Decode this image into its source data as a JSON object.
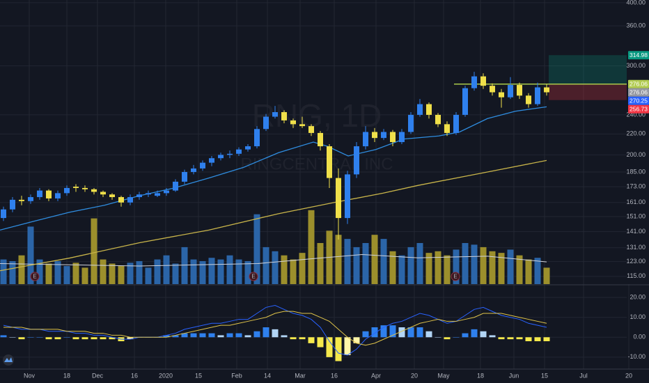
{
  "chart_data": [
    {
      "type": "candlestick",
      "watermark_symbol": "RNG, 1D",
      "watermark_name": "RINGCENTRAL INC",
      "x": [
        1,
        3.6,
        6.2,
        8.8,
        11.4,
        14,
        16.6,
        19.2,
        21.8,
        24.4,
        27,
        29.6,
        32.2,
        34.8,
        37.4,
        40,
        42.6,
        45.2,
        47.8,
        50.4,
        53,
        55.6,
        58.2,
        60.8,
        63.4,
        66,
        68.6,
        71.2,
        73.8,
        76.4,
        79,
        81.6,
        84.2,
        86.8,
        89.4,
        92,
        94.6,
        97.2,
        99.8,
        102.4,
        105,
        107.6,
        110.2,
        112.8,
        115.4,
        118,
        120.6,
        123.2,
        125.8,
        128.4,
        131,
        133.6,
        136.2,
        138.8,
        141.4,
        144,
        146.6,
        149.2,
        151.8,
        154.4,
        157
      ],
      "open": [
        150,
        156,
        163,
        162,
        165,
        170,
        164,
        168,
        173,
        172,
        171,
        169,
        167,
        165,
        161,
        165,
        167,
        166,
        168,
        170,
        177,
        185,
        188,
        193,
        197,
        200,
        201,
        205,
        208,
        225,
        238,
        243,
        234,
        230,
        228,
        221,
        208,
        180,
        150,
        183,
        208,
        222,
        216,
        222,
        212,
        222,
        240,
        252,
        240,
        230,
        221,
        240,
        271,
        286,
        274,
        266,
        260,
        275,
        262,
        252,
        272
      ],
      "high": [
        158,
        165,
        166,
        167,
        172,
        171,
        170,
        174,
        175,
        174,
        172,
        170,
        168,
        166,
        167,
        169,
        170,
        170,
        172,
        179,
        187,
        191,
        195,
        199,
        202,
        204,
        207,
        210,
        228,
        241,
        250,
        245,
        236,
        238,
        230,
        223,
        210,
        188,
        186,
        212,
        228,
        226,
        225,
        224,
        225,
        243,
        258,
        254,
        242,
        233,
        243,
        274,
        292,
        290,
        277,
        270,
        285,
        278,
        265,
        278,
        276
      ],
      "low": [
        148,
        154,
        159,
        160,
        163,
        162,
        162,
        166,
        169,
        169,
        167,
        165,
        163,
        158,
        159,
        163,
        165,
        165,
        166,
        169,
        175,
        183,
        186,
        190,
        195,
        197,
        199,
        203,
        206,
        223,
        236,
        231,
        226,
        226,
        218,
        204,
        172,
        136,
        146,
        180,
        205,
        212,
        214,
        208,
        210,
        220,
        238,
        236,
        227,
        218,
        219,
        238,
        268,
        270,
        262,
        248,
        258,
        258,
        248,
        250,
        262
      ],
      "close": [
        156,
        163,
        162,
        165,
        170,
        164,
        168,
        172,
        172,
        171,
        169,
        167,
        165,
        161,
        165,
        167,
        168,
        168,
        170,
        177,
        185,
        188,
        193,
        197,
        200,
        201,
        205,
        208,
        225,
        238,
        243,
        234,
        230,
        228,
        221,
        208,
        180,
        150,
        183,
        208,
        222,
        216,
        222,
        212,
        222,
        240,
        252,
        240,
        230,
        221,
        240,
        271,
        286,
        274,
        266,
        260,
        275,
        262,
        252,
        272,
        266
      ],
      "up_color": "#2f80ed",
      "down_color": "#f0e04a",
      "xlim": [
        0,
        186.4
      ],
      "xticks": [
        {
          "value": 8.4,
          "label": "Nov"
        },
        {
          "value": 19.2,
          "label": "18"
        },
        {
          "value": 28,
          "label": "Dec"
        },
        {
          "value": 38.6,
          "label": "16"
        },
        {
          "value": 47.6,
          "label": "2020"
        },
        {
          "value": 57,
          "label": "15"
        },
        {
          "value": 68,
          "label": "Feb"
        },
        {
          "value": 76.8,
          "label": "14"
        },
        {
          "value": 86.2,
          "label": "Mar"
        },
        {
          "value": 96,
          "label": "16"
        },
        {
          "value": 108,
          "label": "Apr"
        },
        {
          "value": 119,
          "label": "20"
        },
        {
          "value": 127.4,
          "label": "May"
        },
        {
          "value": 138,
          "label": "18"
        },
        {
          "value": 147.6,
          "label": "Jun"
        },
        {
          "value": 156.4,
          "label": "15"
        },
        {
          "value": 167.6,
          "label": "Jul"
        },
        {
          "value": 180.6,
          "label": "20"
        }
      ],
      "ylim": [
        111,
        405
      ],
      "log_scale": true,
      "yticks": [
        {
          "value": 400,
          "label": "400.00"
        },
        {
          "value": 360,
          "label": "360.00"
        },
        {
          "value": 300,
          "label": "300.00"
        },
        {
          "value": 240,
          "label": "240.00"
        },
        {
          "value": 220,
          "label": "220.00"
        },
        {
          "value": 200,
          "label": "200.00"
        },
        {
          "value": 185,
          "label": "185.00"
        },
        {
          "value": 173,
          "label": "173.00"
        },
        {
          "value": 161,
          "label": "161.00"
        },
        {
          "value": 151,
          "label": "151.00"
        },
        {
          "value": 141,
          "label": "141.00"
        },
        {
          "value": 131,
          "label": "131.00"
        },
        {
          "value": 123,
          "label": "123.00"
        },
        {
          "value": 115,
          "label": "115.00"
        }
      ],
      "moving_averages": [
        {
          "color": "#2f8de0",
          "x": [
            0,
            10,
            20,
            30,
            40,
            50,
            60,
            70,
            80,
            90,
            94,
            100,
            108,
            116,
            126,
            132,
            140,
            148,
            157
          ],
          "values": [
            142,
            148,
            154,
            159,
            166,
            172,
            180,
            189,
            202,
            212,
            208,
            199,
            205,
            215,
            218,
            222,
            236,
            244,
            249
          ]
        },
        {
          "color": "#c9b54a",
          "x": [
            0,
            20,
            40,
            60,
            80,
            96,
            110,
            120,
            140,
            157
          ],
          "values": [
            118,
            125,
            134,
            142,
            153,
            161,
            168,
            174,
            185,
            195
          ]
        }
      ],
      "volume": {
        "values": [
          30,
          28,
          35,
          70,
          30,
          25,
          28,
          22,
          26,
          20,
          80,
          30,
          25,
          22,
          26,
          28,
          20,
          30,
          35,
          25,
          45,
          30,
          28,
          32,
          30,
          35,
          30,
          28,
          85,
          45,
          40,
          35,
          30,
          38,
          90,
          50,
          65,
          60,
          55,
          45,
          50,
          60,
          55,
          40,
          35,
          45,
          50,
          38,
          40,
          35,
          42,
          50,
          48,
          45,
          40,
          38,
          42,
          35,
          30,
          32,
          20
        ],
        "up_color": "#2b65a8",
        "down_color": "#9c8f2c",
        "ma": {
          "color": "#d1d4dc",
          "x": [
            0,
            40,
            74,
            90,
            104,
            120,
            140,
            157
          ],
          "values": [
            25,
            22,
            25,
            31,
            36,
            32,
            34,
            27
          ]
        }
      },
      "earnings": {
        "x": [
          10,
          72.8,
          130.8
        ],
        "labels": [
          "E",
          "E",
          "E"
        ]
      },
      "level_line": {
        "value": 276.06,
        "x_start": 130.4,
        "color": "#a8c94a"
      },
      "position": {
        "target": 314.98,
        "entry": 276.06,
        "stop": 256.73,
        "x_start": 157.6,
        "x_end": 180
      },
      "tags": {
        "values": [
          314.98,
          276.06,
          276.06,
          270.25,
          256.73
        ],
        "colors": [
          "#089981",
          "#b2cc52",
          "#9598a1",
          "#2962ff",
          "#f23645"
        ]
      }
    },
    {
      "type": "macd",
      "macd": [
        6,
        5,
        4,
        4,
        4,
        3,
        3,
        3,
        2,
        2,
        1,
        1,
        0,
        -1,
        -1,
        0,
        0,
        0,
        1,
        2,
        4,
        5,
        6,
        7,
        7,
        8,
        9,
        9,
        12,
        15,
        16,
        14,
        12,
        11,
        9,
        5,
        -2,
        -8,
        -9,
        -6,
        -1,
        2,
        5,
        7,
        8,
        10,
        12,
        11,
        9,
        7,
        8,
        11,
        14,
        15,
        13,
        11,
        10,
        9,
        7,
        6,
        5
      ],
      "signal": [
        5,
        5,
        5,
        4,
        4,
        4,
        4,
        3,
        3,
        3,
        2,
        2,
        1,
        1,
        0,
        0,
        0,
        0,
        0,
        1,
        2,
        3,
        4,
        5,
        6,
        6,
        7,
        8,
        9,
        10,
        12,
        13,
        13,
        12,
        12,
        10,
        8,
        4,
        0,
        -3,
        -4,
        -3,
        -1,
        1,
        3,
        5,
        7,
        8,
        9,
        8,
        8,
        9,
        10,
        12,
        12,
        12,
        11,
        10,
        9,
        8,
        7
      ],
      "histogram": [
        1,
        0,
        -1,
        0,
        0,
        -1,
        -1,
        0,
        -1,
        -1,
        -1,
        -1,
        -1,
        -2,
        -1,
        0,
        0,
        0,
        1,
        1,
        2,
        2,
        2,
        2,
        1,
        2,
        2,
        1,
        3,
        5,
        4,
        1,
        -1,
        -1,
        -3,
        -5,
        -10,
        -12,
        -9,
        -3,
        3,
        5,
        6,
        6,
        5,
        5,
        5,
        3,
        0,
        -1,
        0,
        2,
        4,
        3,
        1,
        -1,
        -1,
        -1,
        -2,
        -2,
        -2
      ],
      "macd_color": "#2962ff",
      "signal_color": "#e0c44a",
      "hist_colors": [
        "#2f80ed",
        "#b2d5f5",
        "#f5e94c",
        "#fff6a8"
      ],
      "ylim": [
        -16,
        26
      ],
      "yticks": [
        {
          "value": 20,
          "label": "20.00"
        },
        {
          "value": 10,
          "label": "10.00"
        },
        {
          "value": 0,
          "label": "0.00"
        },
        {
          "value": -10,
          "label": "-10.00"
        }
      ]
    }
  ]
}
